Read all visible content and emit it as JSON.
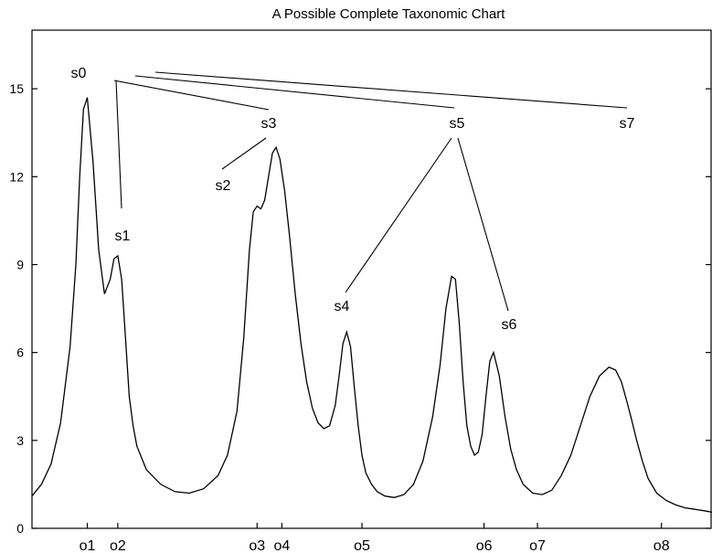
{
  "chart_data": {
    "type": "line",
    "title": "A Possible Complete Taxonomic Chart",
    "xlabel": "",
    "ylabel": "",
    "ylim": [
      0,
      17
    ],
    "y_ticks": [
      0,
      3,
      6,
      9,
      12,
      15
    ],
    "grid": false,
    "legend": "none",
    "categories": [
      "o1",
      "o2",
      "o3",
      "o4",
      "o5",
      "o6",
      "o7",
      "o8"
    ],
    "series": [
      {
        "x": [
          0,
          10,
          20,
          30,
          40,
          46,
          50,
          54,
          58,
          64,
          70,
          76,
          82,
          86,
          90,
          94,
          98,
          102,
          106,
          110,
          120,
          135,
          150,
          165,
          180,
          195,
          205,
          215,
          222,
          228,
          232,
          236,
          240,
          244,
          248,
          252,
          256,
          260,
          265,
          270,
          276,
          282,
          288,
          294,
          300,
          306,
          312,
          318,
          322,
          326,
          330,
          334,
          338,
          342,
          346,
          350,
          356,
          362,
          370,
          380,
          390,
          400,
          410,
          420,
          428,
          434,
          440,
          444,
          448,
          452,
          456,
          460,
          464,
          468,
          472,
          476,
          480,
          484,
          490,
          496,
          502,
          508,
          515,
          525,
          535,
          545,
          555,
          565,
          575,
          585,
          595,
          605,
          612,
          618,
          624,
          628,
          634,
          640,
          646,
          655,
          665,
          675,
          685,
          695,
          705,
          713
        ],
        "values": [
          1.1,
          1.5,
          2.2,
          3.6,
          6.2,
          9.0,
          12.0,
          14.3,
          14.7,
          12.5,
          9.5,
          8.0,
          8.5,
          9.2,
          9.3,
          8.5,
          6.5,
          4.5,
          3.5,
          2.8,
          2.0,
          1.5,
          1.25,
          1.2,
          1.35,
          1.8,
          2.5,
          4.0,
          6.5,
          9.5,
          10.8,
          11.0,
          10.9,
          11.2,
          12.0,
          12.8,
          13.0,
          12.6,
          11.5,
          10.0,
          8.0,
          6.3,
          5.0,
          4.1,
          3.6,
          3.4,
          3.5,
          4.2,
          5.2,
          6.3,
          6.7,
          6.2,
          4.8,
          3.5,
          2.5,
          1.9,
          1.5,
          1.25,
          1.1,
          1.05,
          1.15,
          1.5,
          2.3,
          3.8,
          5.6,
          7.5,
          8.6,
          8.5,
          7.0,
          5.0,
          3.5,
          2.8,
          2.5,
          2.6,
          3.2,
          4.5,
          5.7,
          6.0,
          5.2,
          3.8,
          2.7,
          2.0,
          1.5,
          1.2,
          1.15,
          1.3,
          1.8,
          2.5,
          3.5,
          4.5,
          5.2,
          5.5,
          5.4,
          5.0,
          4.3,
          3.8,
          3.0,
          2.3,
          1.7,
          1.2,
          0.95,
          0.8,
          0.7,
          0.65,
          0.6,
          0.55
        ]
      }
    ],
    "peak_positions": [
      58,
      90,
      236,
      262,
      346,
      474,
      530,
      660
    ],
    "nodes": [
      {
        "label": "s0"
      },
      {
        "label": "s1"
      },
      {
        "label": "s2"
      },
      {
        "label": "s3"
      },
      {
        "label": "s4"
      },
      {
        "label": "s5"
      },
      {
        "label": "s6"
      },
      {
        "label": "s7"
      }
    ]
  }
}
